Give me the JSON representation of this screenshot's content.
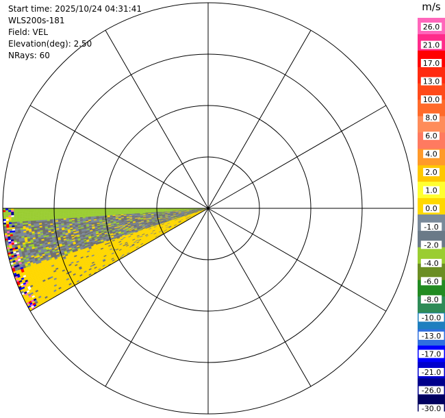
{
  "info": {
    "start_time": "Start time: 2025/10/24 04:31:41",
    "instrument": "WLS200s-181",
    "field": "Field: VEL",
    "elevation": "Elevation(deg): 2.50",
    "nrays": "NRays: 60"
  },
  "colorbar": {
    "unit": "m/s",
    "ticks": [
      "26.0",
      "21.0",
      "17.0",
      "13.0",
      "10.0",
      "8.0",
      "6.0",
      "4.0",
      "2.0",
      "1.0",
      "0.0",
      "-1.0",
      "-2.0",
      "-4.0",
      "-6.0",
      "-8.0",
      "-10.0",
      "-13.0",
      "-17.0",
      "-21.0",
      "-26.0",
      "-30.0"
    ],
    "colors": [
      "#ff66bb",
      "#ff2a8a",
      "#ff0000",
      "#ff2a10",
      "#ff4a1a",
      "#ff6a2a",
      "#ff8c5a",
      "#ff7a60",
      "#ff9a2a",
      "#ffc800",
      "#ffff30",
      "#ffd800",
      "#7a8a9a",
      "#6a7a88",
      "#9acd32",
      "#6b8e23",
      "#228b22",
      "#2e8b57",
      "#1e7fbf",
      "#2f6fdf",
      "#0000ff",
      "#0000cd",
      "#00008b",
      "#000060"
    ]
  },
  "chart_data": {
    "type": "heatmap",
    "projection": "polar-ppi",
    "field": "VEL",
    "units": "m/s",
    "elevation_deg": 2.5,
    "nrays": 60,
    "sector_azimuth_deg": [
      240,
      270
    ],
    "range_rings": 4,
    "radials_every_deg": 30,
    "dominant_values": [
      {
        "azimuth_band_deg": [
          266,
          270
        ],
        "velocity": -2.0
      },
      {
        "azimuth_band_deg": [
          252,
          266
        ],
        "velocity": 0.0
      },
      {
        "azimuth_band_deg": [
          240,
          252
        ],
        "velocity": 2.0
      }
    ]
  }
}
